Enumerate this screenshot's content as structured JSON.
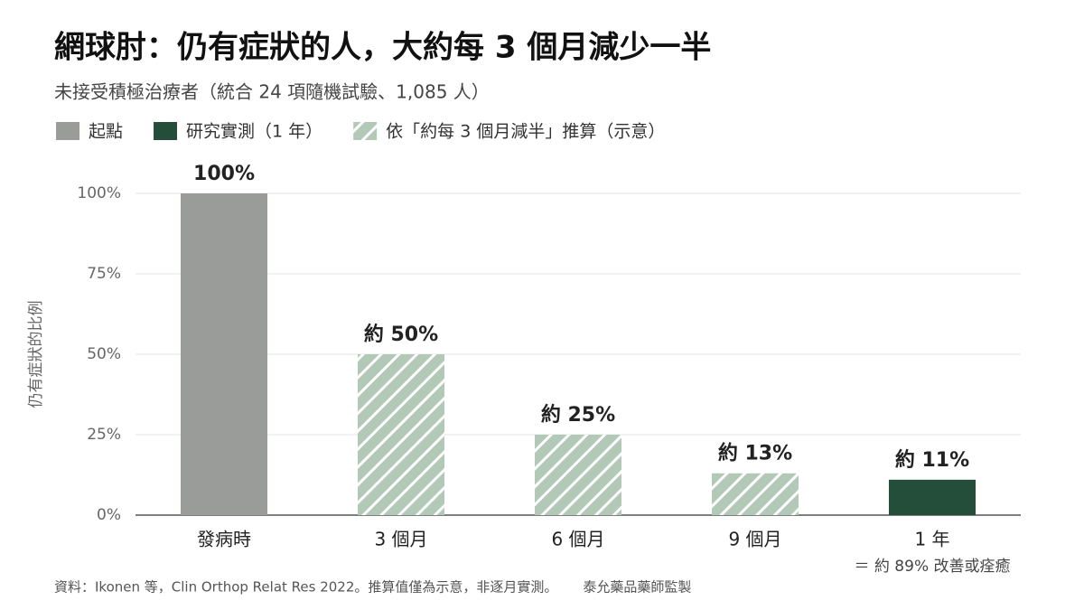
{
  "chart_data": {
    "type": "bar",
    "title": "網球肘：仍有症狀的人，大約每 3 個月減少一半",
    "subtitle": "未接受積極治療者（統合 24 項隨機試驗、1,085 人）",
    "y_label": "仍有症狀的比例",
    "categories": [
      "發病時",
      "3 個月",
      "6 個月",
      "9 個月",
      "1 年"
    ],
    "series": [
      {
        "name": "起點",
        "color": "#9a9c99",
        "values": [
          100,
          null,
          null,
          null,
          null
        ],
        "value_labels": [
          "100%",
          null,
          null,
          null,
          null
        ]
      },
      {
        "name": "研究實測（1 年）",
        "color": "#244d3a",
        "values": [
          null,
          null,
          null,
          null,
          11
        ],
        "value_labels": [
          null,
          null,
          null,
          null,
          "約 11%"
        ]
      },
      {
        "name": "依「約每 3 個月減半」推算（示意）",
        "color": "#b3c9b8",
        "hatch": true,
        "values": [
          null,
          50,
          25,
          13,
          null
        ],
        "value_labels": [
          null,
          "約 50%",
          "約 25%",
          "約 13%",
          null
        ]
      }
    ],
    "annotation": "＝ 約 89% 改善或痊癒",
    "source": "資料：Ikonen 等，Clin Orthop Relat Res 2022。推算值僅為示意，非逐月實測。",
    "credit": "泰允藥品藥師監製",
    "ylim": [
      0,
      100
    ],
    "yticks": [
      {
        "value": 0,
        "label": "0%"
      },
      {
        "value": 25,
        "label": "25%"
      },
      {
        "value": 50,
        "label": "50%"
      },
      {
        "value": 75,
        "label": "75%"
      },
      {
        "value": 100,
        "label": "100%"
      }
    ],
    "grid": true
  }
}
